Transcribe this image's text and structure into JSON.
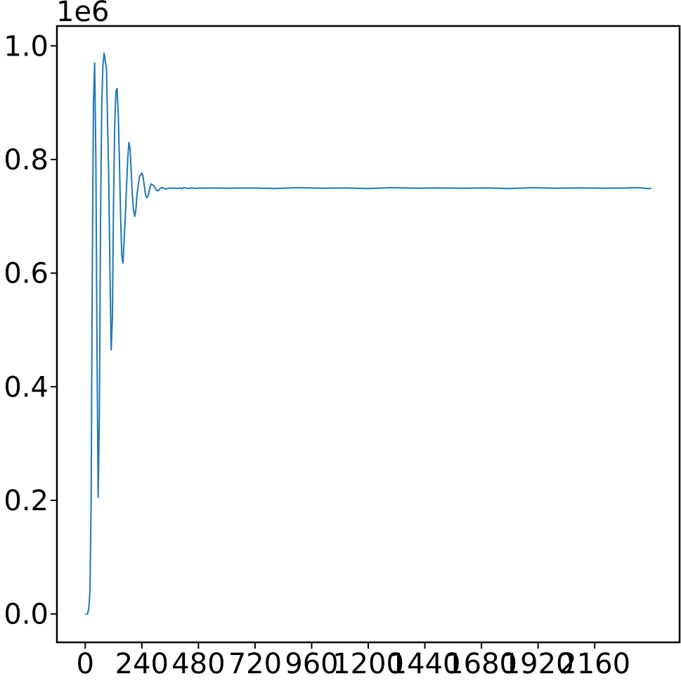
{
  "chart_data": {
    "type": "line",
    "title": "",
    "xlabel": "",
    "ylabel": "",
    "y_offset_label": "1e6",
    "y_scale": 1000000,
    "xlim": [
      -120,
      2520
    ],
    "ylim": [
      -50000,
      1035000
    ],
    "x_ticks": [
      0,
      240,
      480,
      720,
      960,
      1200,
      1440,
      1680,
      1920,
      2160
    ],
    "x_tick_labels": [
      "0",
      "240",
      "480",
      "720",
      "960",
      "1200",
      "1440",
      "1680",
      "1920",
      "2160"
    ],
    "y_ticks": [
      0,
      200000,
      400000,
      600000,
      800000,
      1000000
    ],
    "y_tick_labels": [
      "0.0",
      "0.2",
      "0.4",
      "0.6",
      "0.8",
      "1.0"
    ],
    "grid": false,
    "colors": {
      "line": "#1f77b4",
      "axes": "#000000",
      "background": "#ffffff"
    },
    "series": [
      {
        "x": [
          0,
          10,
          15,
          20,
          25,
          30,
          35,
          40,
          45,
          50,
          55,
          60,
          65,
          70,
          75,
          80,
          90,
          100,
          105,
          110,
          115,
          120,
          125,
          130,
          135,
          140,
          145,
          150,
          155,
          160,
          170,
          180,
          185,
          190,
          195,
          200,
          205,
          210,
          215,
          220,
          230,
          240,
          245,
          250,
          255,
          260,
          265,
          270,
          275,
          280,
          290,
          300,
          305,
          310,
          315,
          320,
          325,
          330,
          335,
          340,
          350,
          360,
          365,
          370,
          375,
          380,
          385,
          390,
          395,
          400,
          410,
          420,
          430,
          440,
          450,
          460,
          470,
          480,
          500,
          540,
          600,
          700,
          800,
          900,
          1000,
          1100,
          1200,
          1300,
          1400,
          1500,
          1600,
          1700,
          1800,
          1900,
          2000,
          2100,
          2200,
          2300,
          2350,
          2380,
          2400
        ],
        "y": [
          0,
          0,
          10000,
          40000,
          200000,
          600000,
          900000,
          970000,
          800000,
          450000,
          205000,
          350000,
          700000,
          900000,
          965000,
          987000,
          960000,
          760000,
          600000,
          465000,
          520000,
          720000,
          860000,
          920000,
          925000,
          880000,
          800000,
          700000,
          630000,
          618000,
          700000,
          800000,
          830000,
          820000,
          780000,
          735000,
          710000,
          700000,
          712000,
          740000,
          770000,
          776000,
          770000,
          755000,
          740000,
          733000,
          734000,
          742000,
          752000,
          757000,
          754000,
          747000,
          745000,
          745000,
          748000,
          750000,
          751000,
          750000,
          749000,
          748000,
          749000,
          750000,
          749500,
          749000,
          749500,
          750000,
          749500,
          749000,
          749500,
          750000,
          749000,
          750500,
          749500,
          749000,
          750000,
          749500,
          749000,
          750000,
          749500,
          750000,
          749500,
          750000,
          749000,
          750500,
          749500,
          750000,
          749000,
          750500,
          749500,
          750000,
          749500,
          750000,
          749000,
          750500,
          749500,
          750000,
          749500,
          750000,
          750500,
          749000,
          749000
        ]
      }
    ]
  }
}
